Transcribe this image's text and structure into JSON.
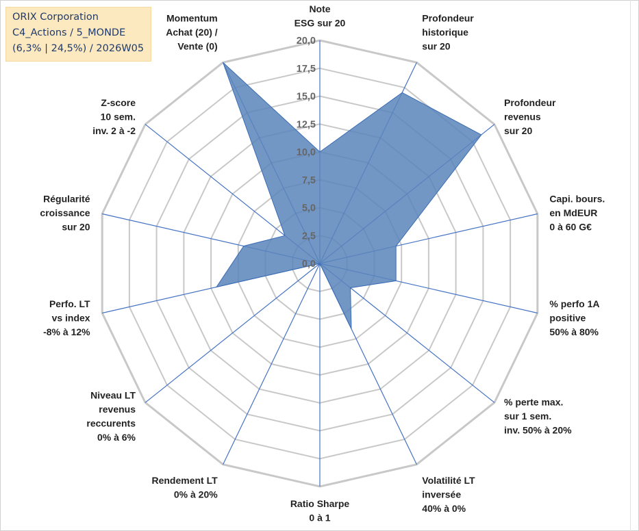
{
  "title_box": {
    "lines": [
      "ORIX Corporation",
      "C4_Actions / 5_MONDE",
      "(6,3% | 24,5%) / 2026W05"
    ]
  },
  "colors": {
    "fill": "#5b85bb",
    "stroke": "#3a6cb4",
    "spoke": "#4472c4",
    "ring": "#c8c8c8",
    "title_bg": "#fde9c0",
    "title_text": "#1f3a6b"
  },
  "chart_data": {
    "type": "radar",
    "r_min": 0,
    "r_max": 20,
    "r_ticks": [
      "0,0",
      "2,5",
      "5,0",
      "7,5",
      "10,0",
      "12,5",
      "15,0",
      "17,5",
      "20,0"
    ],
    "grid": true,
    "axes": [
      {
        "label": [
          "Note",
          "ESG sur 20"
        ],
        "value": 10.0
      },
      {
        "label": [
          "Profondeur",
          "historique",
          "sur 20"
        ],
        "value": 17.0
      },
      {
        "label": [
          "Profondeur",
          "revenus",
          "sur 20"
        ],
        "value": 18.5
      },
      {
        "label": [
          "Capi. bours.",
          "en MdEUR",
          "0 à 60 G€"
        ],
        "value": 7.0
      },
      {
        "label": [
          "% perfo 1A",
          "positive",
          "50% à 80%"
        ],
        "value": 7.0
      },
      {
        "label": [
          "% perte max.",
          "sur 1 sem.",
          "inv. 50% à 20%"
        ],
        "value": 3.5
      },
      {
        "label": [
          "Volatilité LT",
          "inversée",
          "40% à 0%"
        ],
        "value": 6.5
      },
      {
        "label": [
          "Ratio Sharpe",
          "0 à 1"
        ],
        "value": 0.0
      },
      {
        "label": [
          "Rendement LT",
          "0% à 20%"
        ],
        "value": 0.0
      },
      {
        "label": [
          "Niveau LT",
          "revenus",
          "reccurents",
          "0% à 6%"
        ],
        "value": 0.0
      },
      {
        "label": [
          "Perfo. LT",
          "vs index",
          "-8% à 12%"
        ],
        "value": 9.5
      },
      {
        "label": [
          "Régularité",
          "croissance",
          "sur 20"
        ],
        "value": 7.0
      },
      {
        "label": [
          "Z-score",
          "10 sem.",
          "inv. 2 à -2"
        ],
        "value": 4.0
      },
      {
        "label": [
          "Momentum",
          "Achat (20) /",
          "Vente (0)"
        ],
        "value": 20.0
      }
    ]
  }
}
